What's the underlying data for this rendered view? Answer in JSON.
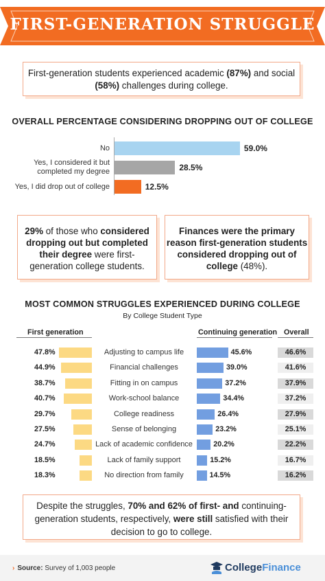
{
  "banner": {
    "title": "First-Generation Struggle"
  },
  "intro": {
    "pre": "First-generation students experienced academic ",
    "academic": "(87%)",
    "mid": " and social ",
    "social": "(58%)",
    "post": " challenges during college."
  },
  "chart1_title": "OVERALL PERCENTAGE CONSIDERING DROPPING OUT OF COLLEGE",
  "tips": {
    "left_pct": "29%",
    "left_a": " of those who ",
    "left_b": "considered dropping out but completed their degree",
    "left_c": " were first-generation college students.",
    "right_bold": "Finances were the primary reason first-generation students considered dropping out of college",
    "right_tail": " (48%)."
  },
  "chart2_title": "MOST COMMON STRUGGLES EXPERIENCED DURING COLLEGE",
  "chart2_subtitle": "By College Student Type",
  "chart_data": [
    {
      "type": "bar",
      "title": "OVERALL PERCENTAGE CONSIDERING DROPPING OUT OF COLLEGE",
      "categories": [
        "No",
        "Yes, I considered it but completed my degree",
        "Yes, I did drop out of college"
      ],
      "category_lines": [
        [
          "No"
        ],
        [
          "Yes, I considered it but",
          "completed my degree"
        ],
        [
          "Yes, I did drop out of college"
        ]
      ],
      "values": [
        59.0,
        28.5,
        12.5
      ],
      "value_labels": [
        "59.0%",
        "28.5%",
        "12.5%"
      ],
      "colors": [
        "#a8d4f0",
        "#a6a6a6",
        "#f26c22"
      ],
      "xlim": [
        0,
        100
      ],
      "grid": false
    },
    {
      "type": "bar",
      "title": "MOST COMMON STRUGGLES EXPERIENCED DURING COLLEGE",
      "subtitle": "By College Student Type",
      "categories": [
        "Adjusting to campus life",
        "Financial challenges",
        "Fitting in on campus",
        "Work-school balance",
        "College readiness",
        "Sense of belonging",
        "Lack of academic confidence",
        "Lack of family support",
        "No direction from family"
      ],
      "series": [
        {
          "name": "First generation",
          "color": "#fcd983",
          "values": [
            47.8,
            44.9,
            38.7,
            40.7,
            29.7,
            27.5,
            24.7,
            18.5,
            18.3
          ],
          "labels": [
            "47.8%",
            "44.9%",
            "38.7%",
            "40.7%",
            "29.7%",
            "27.5%",
            "24.7%",
            "18.5%",
            "18.3%"
          ]
        },
        {
          "name": "Continuing generation",
          "color": "#729ee0",
          "values": [
            45.6,
            39.0,
            37.2,
            34.4,
            26.4,
            23.2,
            20.2,
            15.2,
            14.5
          ],
          "labels": [
            "45.6%",
            "39.0%",
            "37.2%",
            "34.4%",
            "26.4%",
            "23.2%",
            "20.2%",
            "15.2%",
            "14.5%"
          ]
        },
        {
          "name": "Overall",
          "values": [
            46.6,
            41.6,
            37.9,
            37.2,
            27.9,
            25.1,
            22.2,
            16.7,
            16.2
          ],
          "labels": [
            "46.6%",
            "41.6%",
            "37.9%",
            "37.2%",
            "27.9%",
            "25.1%",
            "22.2%",
            "16.7%",
            "16.2%"
          ]
        }
      ],
      "grid": false
    }
  ],
  "final": {
    "pre": "Despite the struggles, ",
    "bold": "70% and 62% of first- and",
    "mid": " continuing-generation students, respectively,",
    "bold2": " were still",
    "post": " satisfied with their decision to go to college."
  },
  "footer": {
    "source_label": "Source:",
    "source_text": " Survey of 1,003 people",
    "brand_a": "College",
    "brand_b": "Finance"
  },
  "colors": {
    "accent": "#f26c22",
    "box_border": "#f2a888",
    "box_shadow": "#fde3d4"
  },
  "icons": {
    "source": "chevron-right-icon",
    "brand": "college-finance-logo-icon"
  }
}
